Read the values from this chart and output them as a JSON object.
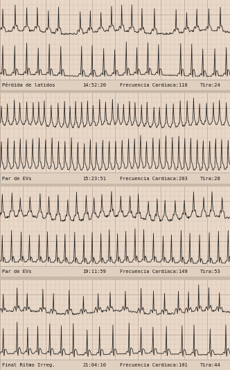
{
  "bg_color": "#e8d8c8",
  "grid_minor_color": "#c8a898",
  "grid_major_color": "#b89888",
  "ecg_color": "#1a1a1a",
  "label_bg": "#e0d0c0",
  "label_text_color": "#111111",
  "sep_color": "#d0c0b0",
  "strips": [
    {
      "label": "Pérdida de latidos",
      "time": "14:52:20",
      "freq": "Frecuencia Cardiaca:116",
      "tira": "Tira:24",
      "heart_rate": 116,
      "rhythm": "loss"
    },
    {
      "label": "Par de EVs",
      "time": "15:23:51",
      "freq": "Frecuencia Cardiaca:203",
      "tira": "Tira:28",
      "heart_rate": 203,
      "rhythm": "fast"
    },
    {
      "label": "Par de EVs",
      "time": "19:11:59",
      "freq": "Frecuencia Cardiaca:149",
      "tira": "Tira:53",
      "heart_rate": 149,
      "rhythm": "med"
    },
    {
      "label": "Final Ritmo Irreg.",
      "time": "21:04:10",
      "freq": "Frecuencia Cardiaca:101",
      "tira": "Tira:44",
      "heart_rate": 101,
      "rhythm": "irreg"
    }
  ],
  "fig_width": 3.32,
  "fig_height": 5.39,
  "dpi": 100
}
